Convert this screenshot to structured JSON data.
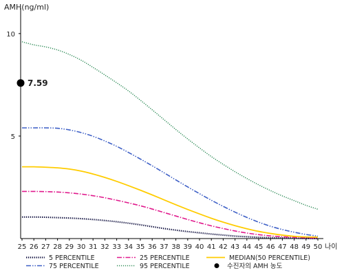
{
  "chart_data": {
    "type": "line",
    "ylabel": "AMH(ng/ml)",
    "xlabel": "나이",
    "ylim": [
      0,
      10.9
    ],
    "xlim": [
      25,
      50
    ],
    "y_ticks": [
      5,
      10
    ],
    "y_tick_labels": [
      "5",
      "10"
    ],
    "x": [
      25,
      26,
      27,
      28,
      29,
      30,
      31,
      32,
      33,
      34,
      35,
      36,
      37,
      38,
      39,
      40,
      41,
      42,
      43,
      44,
      45,
      46,
      47,
      48,
      49,
      50
    ],
    "x_tick_labels": [
      "25",
      "26",
      "27",
      "28",
      "29",
      "30",
      "31",
      "32",
      "33",
      "34",
      "35",
      "36",
      "37",
      "38",
      "39",
      "40",
      "41",
      "42",
      "43",
      "44",
      "45",
      "46",
      "47",
      "48",
      "49",
      "50"
    ],
    "series": [
      {
        "name": "5 PERCENTILE",
        "color": "#0a0a3a",
        "dash": "dotted",
        "values": [
          1.05,
          1.05,
          1.04,
          1.02,
          1.0,
          0.97,
          0.93,
          0.88,
          0.82,
          0.75,
          0.67,
          0.58,
          0.49,
          0.41,
          0.34,
          0.28,
          0.22,
          0.17,
          0.12,
          0.09,
          0.06,
          0.04,
          0.03,
          0.02,
          0.01,
          0.0
        ]
      },
      {
        "name": "25 PERCENTILE",
        "color": "#e0198c",
        "dash": "dashdot",
        "values": [
          2.3,
          2.3,
          2.29,
          2.27,
          2.23,
          2.17,
          2.09,
          1.99,
          1.87,
          1.74,
          1.6,
          1.44,
          1.27,
          1.1,
          0.93,
          0.77,
          0.62,
          0.49,
          0.37,
          0.27,
          0.19,
          0.13,
          0.09,
          0.06,
          0.04,
          0.02
        ]
      },
      {
        "name": "MEDIAN(50 PERCENTILE)",
        "color": "#ffcc00",
        "dash": "solid",
        "values": [
          3.5,
          3.5,
          3.48,
          3.45,
          3.39,
          3.29,
          3.15,
          2.98,
          2.79,
          2.58,
          2.36,
          2.13,
          1.89,
          1.65,
          1.42,
          1.2,
          0.99,
          0.8,
          0.63,
          0.48,
          0.35,
          0.25,
          0.17,
          0.11,
          0.08,
          0.07
        ]
      },
      {
        "name": "75 PERCENTILE",
        "color": "#3d5fc6",
        "dash": "dashdotdot",
        "values": [
          5.4,
          5.4,
          5.4,
          5.38,
          5.3,
          5.17,
          4.99,
          4.76,
          4.5,
          4.2,
          3.88,
          3.55,
          3.21,
          2.86,
          2.52,
          2.19,
          1.87,
          1.57,
          1.29,
          1.03,
          0.8,
          0.6,
          0.44,
          0.31,
          0.2,
          0.12
        ]
      },
      {
        "name": "95 PERCENTILE",
        "color": "#2e8b57",
        "dash": "fine",
        "values": [
          9.6,
          9.45,
          9.35,
          9.2,
          8.98,
          8.7,
          8.35,
          7.98,
          7.6,
          7.2,
          6.75,
          6.28,
          5.8,
          5.32,
          4.86,
          4.42,
          4.0,
          3.62,
          3.26,
          2.93,
          2.62,
          2.34,
          2.08,
          1.85,
          1.62,
          1.43
        ]
      }
    ],
    "point": {
      "label": "수진자의 AMH 농도",
      "x": 25,
      "y": 7.59,
      "text": "7.59",
      "color": "#000000"
    },
    "legend": {
      "placement": "bottom",
      "rows": [
        [
          "5 PERCENTILE",
          "25 PERCENTILE",
          "MEDIAN(50 PERCENTILE)"
        ],
        [
          "75 PERCENTILE",
          "95 PERCENTILE",
          "수진자의 AMH 농도"
        ]
      ]
    }
  }
}
